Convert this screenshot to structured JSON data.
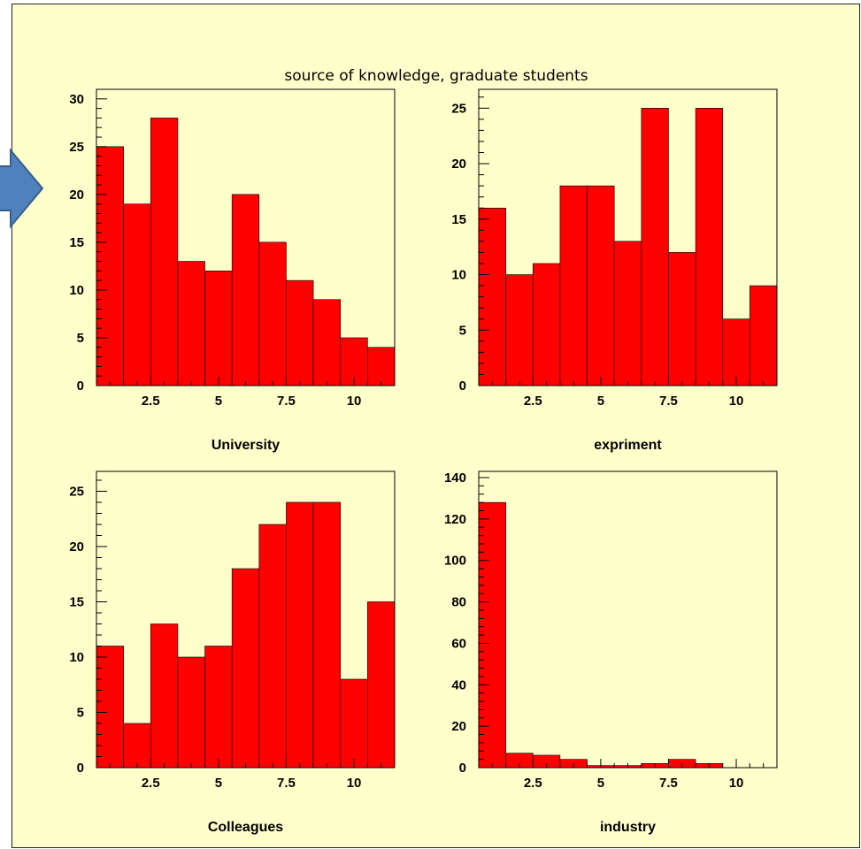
{
  "colors": {
    "background": "#ffffcc",
    "bar": "#ff0000",
    "arrow_fill": "#4f81bd",
    "arrow_stroke": "#385d8a"
  },
  "title": "source of knowledge, graduate students",
  "arrow": {
    "icon": "right-arrow-icon"
  },
  "chart_data": [
    {
      "type": "bar",
      "xlabel": "University",
      "ylabel": "",
      "bin_edges": [
        0.5,
        1.5,
        2.5,
        3.5,
        4.5,
        5.5,
        6.5,
        7.5,
        8.5,
        9.5,
        10.5,
        11.5
      ],
      "values": [
        25,
        19,
        28,
        13,
        12,
        20,
        15,
        11,
        9,
        5,
        4
      ],
      "xlim": [
        0.5,
        11.5
      ],
      "ylim": [
        0,
        31
      ],
      "xticks": [
        2.5,
        5,
        7.5,
        10
      ],
      "xtick_labels": [
        "2.5",
        "5",
        "7.5",
        "10"
      ],
      "yticks": [
        0,
        5,
        10,
        15,
        20,
        25,
        30
      ],
      "ytick_labels": [
        "0",
        "5",
        "10",
        "15",
        "20",
        "25",
        "30"
      ],
      "grid": false
    },
    {
      "type": "bar",
      "xlabel": "expriment",
      "ylabel": "",
      "bin_edges": [
        0.5,
        1.5,
        2.5,
        3.5,
        4.5,
        5.5,
        6.5,
        7.5,
        8.5,
        9.5,
        10.5,
        11.5
      ],
      "values": [
        16,
        10,
        11,
        18,
        18,
        13,
        25,
        12,
        25,
        6,
        9
      ],
      "xlim": [
        0.5,
        11.5
      ],
      "ylim": [
        0,
        26.7
      ],
      "xticks": [
        2.5,
        5,
        7.5,
        10
      ],
      "xtick_labels": [
        "2.5",
        "5",
        "7.5",
        "10"
      ],
      "yticks": [
        0,
        5,
        10,
        15,
        20,
        25
      ],
      "ytick_labels": [
        "0",
        "5",
        "10",
        "15",
        "20",
        "25"
      ],
      "grid": false
    },
    {
      "type": "bar",
      "xlabel": "Colleagues",
      "ylabel": "",
      "bin_edges": [
        0.5,
        1.5,
        2.5,
        3.5,
        4.5,
        5.5,
        6.5,
        7.5,
        8.5,
        9.5,
        10.5,
        11.5
      ],
      "values": [
        11,
        4,
        13,
        10,
        11,
        18,
        22,
        24,
        24,
        8,
        15
      ],
      "xlim": [
        0.5,
        11.5
      ],
      "ylim": [
        0,
        26.8
      ],
      "xticks": [
        2.5,
        5,
        7.5,
        10
      ],
      "xtick_labels": [
        "2.5",
        "5",
        "7.5",
        "10"
      ],
      "yticks": [
        0,
        5,
        10,
        15,
        20,
        25
      ],
      "ytick_labels": [
        "0",
        "5",
        "10",
        "15",
        "20",
        "25"
      ],
      "grid": false
    },
    {
      "type": "bar",
      "xlabel": "industry",
      "ylabel": "",
      "bin_edges": [
        0.5,
        1.5,
        2.5,
        3.5,
        4.5,
        5.5,
        6.5,
        7.5,
        8.5,
        9.5,
        10.5,
        11.5
      ],
      "values": [
        128,
        7,
        6,
        4,
        1,
        1,
        2,
        4,
        2,
        0,
        0
      ],
      "xlim": [
        0.5,
        11.5
      ],
      "ylim": [
        0,
        143
      ],
      "xticks": [
        2.5,
        5,
        7.5,
        10
      ],
      "xtick_labels": [
        "2.5",
        "5",
        "7.5",
        "10"
      ],
      "yticks": [
        0,
        20,
        40,
        60,
        80,
        100,
        120,
        140
      ],
      "ytick_labels": [
        "0",
        "20",
        "40",
        "60",
        "80",
        "100",
        "120",
        "140"
      ],
      "grid": false
    }
  ]
}
